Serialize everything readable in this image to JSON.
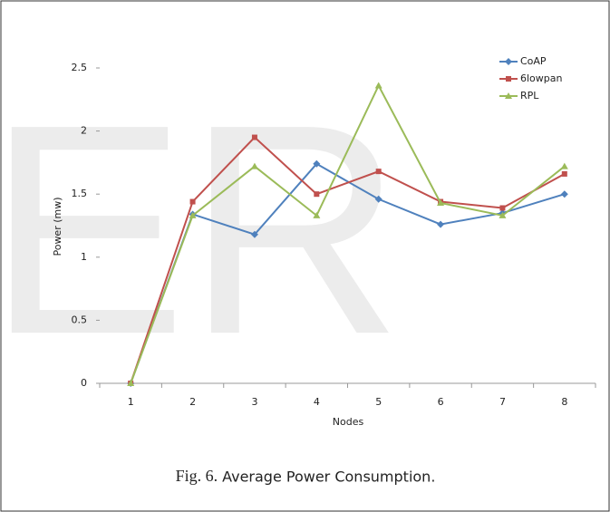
{
  "chart_data": {
    "type": "line",
    "watermark": "ER",
    "x_label": "Nodes",
    "y_label": "Power (mw)",
    "caption_label": "Fig. 6.",
    "caption": "Average Power Consumption.",
    "categories": [
      "1",
      "2",
      "3",
      "4",
      "5",
      "6",
      "7",
      "8"
    ],
    "series": [
      {
        "name": "CoAP",
        "color": "#4f81bd",
        "marker": "diamond",
        "values": [
          0,
          1.34,
          1.18,
          1.74,
          1.46,
          1.26,
          1.35,
          1.5
        ]
      },
      {
        "name": "6lowpan",
        "color": "#c0504d",
        "marker": "square",
        "values": [
          0,
          1.44,
          1.95,
          1.5,
          1.68,
          1.44,
          1.39,
          1.66
        ]
      },
      {
        "name": "RPL",
        "color": "#9bbb59",
        "marker": "triangle",
        "values": [
          0,
          1.33,
          1.72,
          1.33,
          2.36,
          1.43,
          1.33,
          1.72
        ]
      }
    ],
    "ylim": [
      0,
      2.5
    ],
    "yticks": [
      0,
      0.5,
      1,
      1.5,
      2,
      2.5
    ],
    "legend": "top-right",
    "grid": false
  }
}
